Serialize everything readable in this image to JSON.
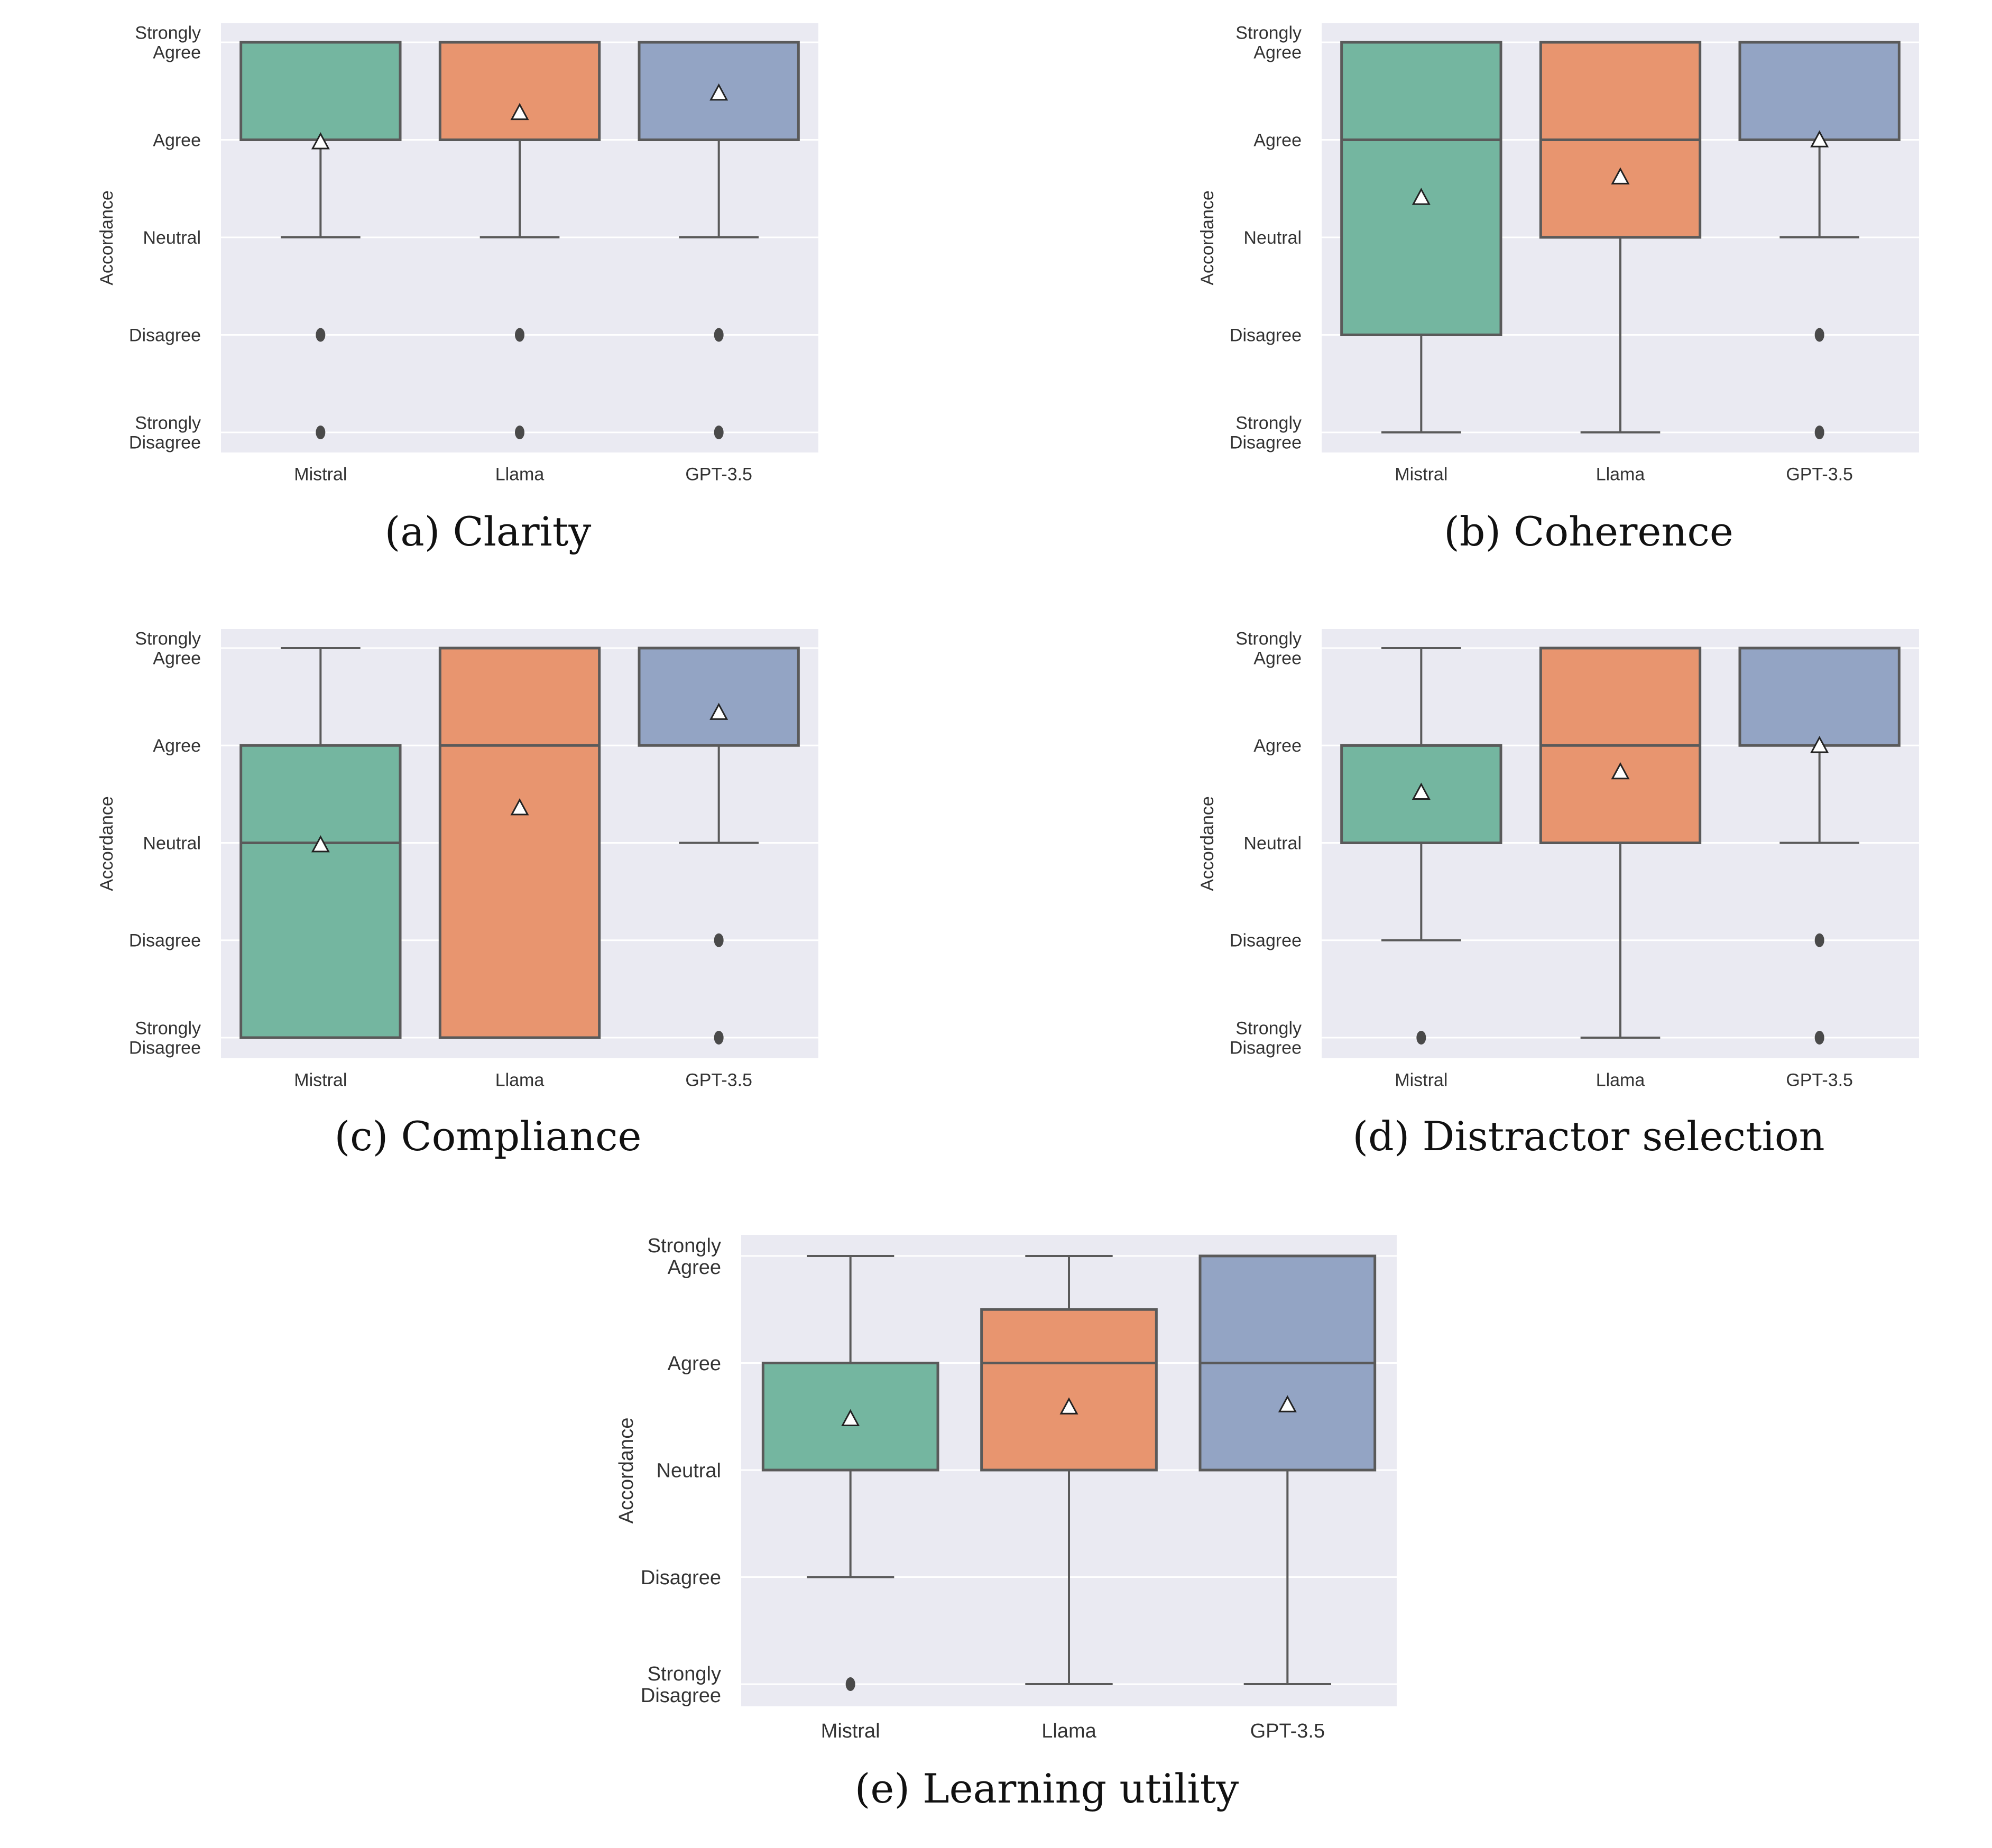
{
  "level_labels": [
    "Strongly Disagree",
    "Disagree",
    "Neutral",
    "Agree",
    "Strongly Agree"
  ],
  "colors": {
    "Mistral": "#74b6a0",
    "Llama": "#e8956f",
    "GPT-3.5": "#93a4c4",
    "panel_bg": "#eaeaf2",
    "box_edge": "#5a5a5a"
  },
  "chart_data": [
    {
      "caption": "(a) Clarity",
      "type": "box",
      "ylabel": "Accordance",
      "categories": [
        "Mistral",
        "Llama",
        "GPT-3.5"
      ],
      "ylim": [
        0.78,
        5.22
      ],
      "yticks": [
        1,
        2,
        3,
        4,
        5
      ],
      "yticklabels": [
        [
          "Strongly",
          "Disagree"
        ],
        [
          "Disagree"
        ],
        [
          "Neutral"
        ],
        [
          "Agree"
        ],
        [
          "Strongly",
          "Agree"
        ]
      ],
      "grid": true,
      "boxes": [
        {
          "name": "Mistral",
          "q1": 4,
          "median": 5,
          "q3": 5,
          "whislo": 3,
          "whishi": 5,
          "mean": 3.98,
          "fliers": [
            1,
            2
          ]
        },
        {
          "name": "Llama",
          "q1": 4,
          "median": 5,
          "q3": 5,
          "whislo": 3,
          "whishi": 5,
          "mean": 4.28,
          "fliers": [
            1,
            2
          ]
        },
        {
          "name": "GPT-3.5",
          "q1": 4,
          "median": 5,
          "q3": 5,
          "whislo": 3,
          "whishi": 5,
          "mean": 4.48,
          "fliers": [
            1,
            2
          ]
        }
      ]
    },
    {
      "caption": "(b) Coherence",
      "type": "box",
      "ylabel": "Accordance",
      "categories": [
        "Mistral",
        "Llama",
        "GPT-3.5"
      ],
      "ylim": [
        0.78,
        5.22
      ],
      "yticks": [
        1,
        2,
        3,
        4,
        5
      ],
      "yticklabels": [
        [
          "Strongly",
          "Disagree"
        ],
        [
          "Disagree"
        ],
        [
          "Neutral"
        ],
        [
          "Agree"
        ],
        [
          "Strongly",
          "Agree"
        ]
      ],
      "grid": true,
      "boxes": [
        {
          "name": "Mistral",
          "q1": 2,
          "median": 4,
          "q3": 5,
          "whislo": 1,
          "whishi": 5,
          "mean": 3.41,
          "fliers": []
        },
        {
          "name": "Llama",
          "q1": 3,
          "median": 4,
          "q3": 5,
          "whislo": 1,
          "whishi": 5,
          "mean": 3.62,
          "fliers": []
        },
        {
          "name": "GPT-3.5",
          "q1": 4,
          "median": 5,
          "q3": 5,
          "whislo": 3,
          "whishi": 5,
          "mean": 4.0,
          "fliers": [
            1,
            2
          ]
        }
      ]
    },
    {
      "caption": "(c) Compliance",
      "type": "box",
      "ylabel": "Accordance",
      "categories": [
        "Mistral",
        "Llama",
        "GPT-3.5"
      ],
      "ylim": [
        0.78,
        5.22
      ],
      "yticks": [
        1,
        2,
        3,
        4,
        5
      ],
      "yticklabels": [
        [
          "Strongly",
          "Disagree"
        ],
        [
          "Disagree"
        ],
        [
          "Neutral"
        ],
        [
          "Agree"
        ],
        [
          "Strongly",
          "Agree"
        ]
      ],
      "grid": true,
      "boxes": [
        {
          "name": "Mistral",
          "q1": 1,
          "median": 3,
          "q3": 4,
          "whislo": 1,
          "whishi": 5,
          "mean": 2.98,
          "fliers": []
        },
        {
          "name": "Llama",
          "q1": 1,
          "median": 4,
          "q3": 5,
          "whislo": 1,
          "whishi": 5,
          "mean": 3.36,
          "fliers": []
        },
        {
          "name": "GPT-3.5",
          "q1": 4,
          "median": 5,
          "q3": 5,
          "whislo": 3,
          "whishi": 5,
          "mean": 4.34,
          "fliers": [
            1,
            2
          ]
        }
      ]
    },
    {
      "caption": "(d) Distractor selection",
      "type": "box",
      "ylabel": "Accordance",
      "categories": [
        "Mistral",
        "Llama",
        "GPT-3.5"
      ],
      "ylim": [
        0.78,
        5.22
      ],
      "yticks": [
        1,
        2,
        3,
        4,
        5
      ],
      "yticklabels": [
        [
          "Strongly",
          "Disagree"
        ],
        [
          "Disagree"
        ],
        [
          "Neutral"
        ],
        [
          "Agree"
        ],
        [
          "Strongly",
          "Agree"
        ]
      ],
      "grid": true,
      "boxes": [
        {
          "name": "Mistral",
          "q1": 3,
          "median": 4,
          "q3": 4,
          "whislo": 2,
          "whishi": 5,
          "mean": 3.52,
          "fliers": [
            1
          ]
        },
        {
          "name": "Llama",
          "q1": 3,
          "median": 4,
          "q3": 5,
          "whislo": 1,
          "whishi": 5,
          "mean": 3.73,
          "fliers": []
        },
        {
          "name": "GPT-3.5",
          "q1": 4,
          "median": 5,
          "q3": 5,
          "whislo": 3,
          "whishi": 5,
          "mean": 4.0,
          "fliers": [
            1,
            2
          ]
        }
      ]
    },
    {
      "caption": "(e) Learning utility",
      "type": "box",
      "ylabel": "Accordance",
      "categories": [
        "Mistral",
        "Llama",
        "GPT-3.5"
      ],
      "ylim": [
        0.78,
        5.22
      ],
      "yticks": [
        1,
        2,
        3,
        4,
        5
      ],
      "yticklabels": [
        [
          "Strongly",
          "Disagree"
        ],
        [
          "Disagree"
        ],
        [
          "Neutral"
        ],
        [
          "Agree"
        ],
        [
          "Strongly",
          "Agree"
        ]
      ],
      "grid": true,
      "boxes": [
        {
          "name": "Mistral",
          "q1": 3,
          "median": 4,
          "q3": 4,
          "whislo": 2,
          "whishi": 5,
          "mean": 3.48,
          "fliers": [
            1
          ]
        },
        {
          "name": "Llama",
          "q1": 3,
          "median": 4,
          "q3": 4.5,
          "whislo": 1,
          "whishi": 5,
          "mean": 3.59,
          "fliers": []
        },
        {
          "name": "GPT-3.5",
          "q1": 3,
          "median": 4,
          "q3": 5,
          "whislo": 1,
          "whishi": 5,
          "mean": 3.61,
          "fliers": []
        }
      ]
    }
  ]
}
